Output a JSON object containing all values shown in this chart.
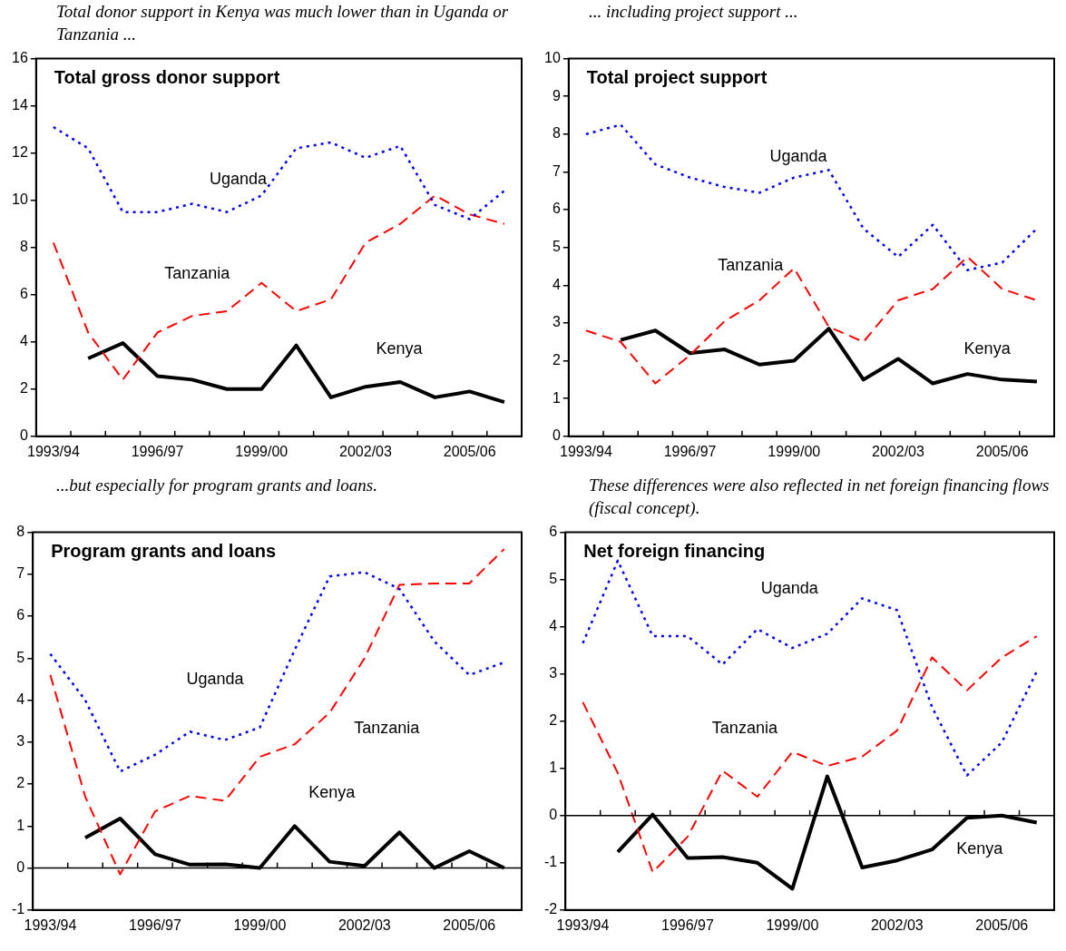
{
  "chart_data": [
    {
      "type": "line",
      "title": "Total gross donor support",
      "annotations": [
        "Total donor support in Kenya was much lower than in Uganda or Tanzania ..."
      ],
      "categories": [
        "1993/94",
        null,
        null,
        "1996/97",
        null,
        null,
        "1999/00",
        null,
        null,
        "2002/03",
        null,
        null,
        "2005/06",
        null
      ],
      "ylim": [
        0,
        16
      ],
      "yticks": [
        0,
        2,
        4,
        6,
        8,
        10,
        12,
        14,
        16
      ],
      "grid": false,
      "legend": false,
      "marker": "none",
      "series": [
        {
          "name": "Uganda",
          "color": "#0000ff",
          "line_style": "dotted",
          "values": [
            13.1,
            12.2,
            9.5,
            9.5,
            9.85,
            9.5,
            10.2,
            12.2,
            12.45,
            11.8,
            12.3,
            9.8,
            9.2,
            10.4
          ]
        },
        {
          "name": "Tanzania",
          "color": "#ff0000",
          "line_style": "dashed",
          "values": [
            8.2,
            4.4,
            2.4,
            4.4,
            5.1,
            5.3,
            6.5,
            5.3,
            5.8,
            8.2,
            9.0,
            10.2,
            9.4,
            9.0
          ]
        },
        {
          "name": "Kenya",
          "color": "#000000",
          "line_style": "solid",
          "values": [
            null,
            3.3,
            3.95,
            2.55,
            2.4,
            2.0,
            2.0,
            3.85,
            1.65,
            2.1,
            2.3,
            1.65,
            1.9,
            1.45
          ]
        }
      ]
    },
    {
      "type": "line",
      "title": "Total project support",
      "annotations": [
        "... including project support ..."
      ],
      "categories": [
        "1993/94",
        null,
        null,
        "1996/97",
        null,
        null,
        "1999/00",
        null,
        null,
        "2002/03",
        null,
        null,
        "2005/06",
        null
      ],
      "ylim": [
        0,
        10
      ],
      "yticks": [
        0,
        1,
        2,
        3,
        4,
        5,
        6,
        7,
        8,
        9,
        10
      ],
      "grid": false,
      "legend": false,
      "marker": "none",
      "series": [
        {
          "name": "Uganda",
          "color": "#0000ff",
          "line_style": "dotted",
          "values": [
            8.0,
            8.25,
            7.2,
            6.85,
            6.6,
            6.45,
            6.85,
            7.05,
            5.5,
            4.75,
            5.6,
            4.4,
            4.6,
            5.5
          ]
        },
        {
          "name": "Tanzania",
          "color": "#ff0000",
          "line_style": "dashed",
          "values": [
            2.8,
            2.5,
            1.4,
            2.15,
            3.05,
            3.6,
            4.45,
            2.9,
            2.5,
            3.6,
            3.9,
            4.75,
            3.9,
            3.6
          ]
        },
        {
          "name": "Kenya",
          "color": "#000000",
          "line_style": "solid",
          "values": [
            null,
            2.55,
            2.8,
            2.2,
            2.3,
            1.9,
            2.0,
            2.85,
            1.5,
            2.05,
            1.4,
            1.65,
            1.5,
            1.45
          ]
        }
      ]
    },
    {
      "type": "line",
      "title": "Program grants and loans",
      "annotations": [
        "...but especially for program grants and loans."
      ],
      "categories": [
        "1993/94",
        null,
        null,
        "1996/97",
        null,
        null,
        "1999/00",
        null,
        null,
        "2002/03",
        null,
        null,
        "2005/06",
        null
      ],
      "ylim": [
        -1,
        8
      ],
      "yticks": [
        -1,
        0,
        1,
        2,
        3,
        4,
        5,
        6,
        7,
        8
      ],
      "grid": false,
      "legend": false,
      "marker": "none",
      "ref_lines": [
        {
          "axis": "y",
          "value": 0,
          "color": "#000000"
        }
      ],
      "series": [
        {
          "name": "Uganda",
          "color": "#0000ff",
          "line_style": "dotted",
          "values": [
            5.1,
            4.0,
            2.3,
            2.7,
            3.25,
            3.05,
            3.35,
            5.2,
            6.95,
            7.05,
            6.65,
            5.4,
            4.6,
            4.9
          ]
        },
        {
          "name": "Tanzania",
          "color": "#ff0000",
          "line_style": "dashed",
          "values": [
            4.6,
            1.7,
            -0.15,
            1.35,
            1.72,
            1.6,
            2.65,
            2.95,
            3.7,
            5.0,
            6.75,
            6.78,
            6.78,
            7.6
          ]
        },
        {
          "name": "Kenya",
          "color": "#000000",
          "line_style": "solid",
          "values": [
            null,
            0.72,
            1.18,
            0.33,
            0.08,
            0.09,
            0.0,
            1.0,
            0.15,
            0.05,
            0.85,
            0.0,
            0.4,
            0.0
          ]
        }
      ]
    },
    {
      "type": "line",
      "title": "Net foreign financing",
      "annotations": [
        "These differences were also reflected in net foreign financing  flows (fiscal concept)."
      ],
      "categories": [
        "1993/94",
        null,
        null,
        "1996/97",
        null,
        null,
        "1999/00",
        null,
        null,
        "2002/03",
        null,
        null,
        "2005/06",
        null
      ],
      "ylim": [
        -2,
        6
      ],
      "yticks": [
        -2,
        -1,
        0,
        1,
        2,
        3,
        4,
        5,
        6
      ],
      "grid": false,
      "legend": false,
      "marker": "none",
      "ref_lines": [
        {
          "axis": "y",
          "value": 0,
          "color": "#000000"
        }
      ],
      "series": [
        {
          "name": "Uganda",
          "color": "#0000ff",
          "line_style": "dotted",
          "values": [
            3.65,
            5.4,
            3.8,
            3.8,
            3.2,
            3.95,
            3.55,
            3.85,
            4.6,
            4.35,
            2.3,
            0.85,
            1.55,
            3.05
          ]
        },
        {
          "name": "Tanzania",
          "color": "#ff0000",
          "line_style": "dashed",
          "values": [
            2.4,
            0.9,
            -1.2,
            -0.45,
            0.95,
            0.4,
            1.35,
            1.05,
            1.25,
            1.8,
            3.35,
            2.65,
            3.35,
            3.8
          ]
        },
        {
          "name": "Kenya",
          "color": "#000000",
          "line_style": "solid",
          "values": [
            null,
            -0.77,
            0.02,
            -0.9,
            -0.88,
            -1.0,
            -1.55,
            0.83,
            -1.1,
            -0.95,
            -0.72,
            -0.05,
            0.0,
            -0.15
          ]
        }
      ]
    }
  ]
}
